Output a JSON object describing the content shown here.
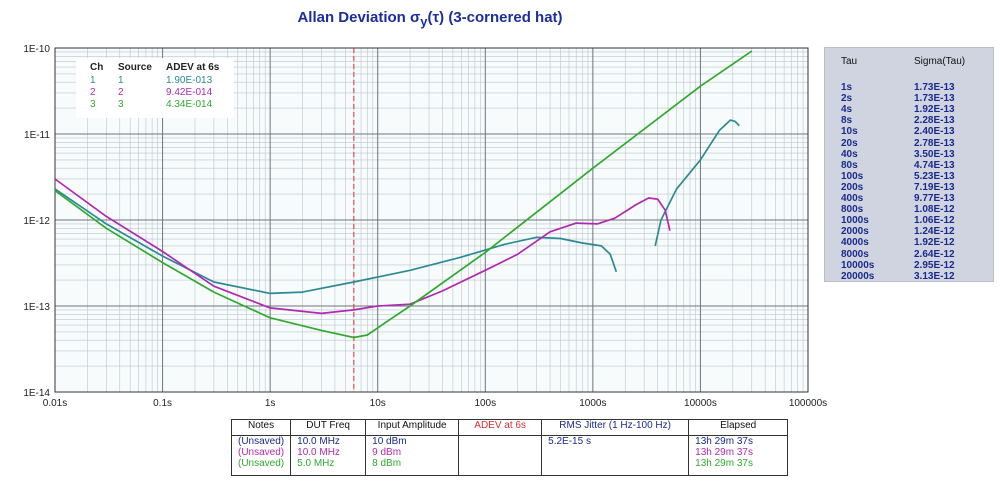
{
  "title": {
    "main": "Allan Deviation σ",
    "sub": "y",
    "rest": "(τ) (3-cornered hat)"
  },
  "chart_data": {
    "type": "line",
    "title": "Allan Deviation σy(τ) (3-cornered hat)",
    "xscale": "log",
    "yscale": "log",
    "xlim": [
      0.01,
      100000
    ],
    "ylim": [
      1e-14,
      1e-10
    ],
    "x_tick_labels": [
      "0.01s",
      "0.1s",
      "1s",
      "10s",
      "100s",
      "1000s",
      "10000s",
      "100000s"
    ],
    "y_tick_labels": [
      "1E-10",
      "1E-11",
      "1E-12",
      "1E-13",
      "1E-14"
    ],
    "grid": true,
    "marker_line": {
      "x": 6,
      "color": "#d63030",
      "style": "dashed"
    },
    "series": [
      {
        "name": "1",
        "color": "#2b8a94",
        "points": [
          [
            0.01,
            2.3e-12
          ],
          [
            0.03,
            9e-13
          ],
          [
            0.1,
            3.8e-13
          ],
          [
            0.3,
            1.9e-13
          ],
          [
            1,
            1.4e-13
          ],
          [
            2,
            1.45e-13
          ],
          [
            6,
            1.9e-13
          ],
          [
            20,
            2.6e-13
          ],
          [
            60,
            3.7e-13
          ],
          [
            150,
            5.2e-13
          ],
          [
            300,
            6.3e-13
          ],
          [
            500,
            6.1e-13
          ],
          [
            800,
            5.4e-13
          ],
          [
            1200,
            5e-13
          ],
          [
            1450,
            4e-13
          ],
          [
            1650,
            2.5e-13
          ]
        ]
      },
      {
        "name": "1",
        "color": "#2b8a94",
        "points": [
          [
            3800,
            5e-13
          ],
          [
            4300,
            1e-12
          ],
          [
            6000,
            2.3e-12
          ],
          [
            10000,
            5e-12
          ],
          [
            15000,
            1.1e-11
          ],
          [
            19000,
            1.45e-11
          ],
          [
            21000,
            1.4e-11
          ],
          [
            23000,
            1.25e-11
          ]
        ]
      },
      {
        "name": "2",
        "color": "#b02ab0",
        "points": [
          [
            0.01,
            3e-12
          ],
          [
            0.03,
            1.1e-12
          ],
          [
            0.1,
            4.3e-13
          ],
          [
            0.3,
            1.7e-13
          ],
          [
            1,
            9.5e-14
          ],
          [
            3,
            8.2e-14
          ],
          [
            6,
            9e-14
          ],
          [
            10,
            1e-13
          ],
          [
            20,
            1.05e-13
          ],
          [
            40,
            1.5e-13
          ],
          [
            100,
            2.6e-13
          ],
          [
            200,
            4e-13
          ],
          [
            400,
            7.3e-13
          ],
          [
            700,
            9.2e-13
          ],
          [
            1100,
            9e-13
          ],
          [
            1600,
            1.05e-12
          ],
          [
            2500,
            1.5e-12
          ],
          [
            3300,
            1.8e-12
          ],
          [
            4000,
            1.75e-12
          ],
          [
            4700,
            1.3e-12
          ],
          [
            5200,
            7.5e-13
          ]
        ]
      },
      {
        "name": "3",
        "color": "#2faa2f",
        "points": [
          [
            0.01,
            2.2e-12
          ],
          [
            0.03,
            8e-13
          ],
          [
            0.1,
            3.2e-13
          ],
          [
            0.3,
            1.45e-13
          ],
          [
            1,
            7.3e-14
          ],
          [
            3,
            5.2e-14
          ],
          [
            6,
            4.3e-14
          ],
          [
            8,
            4.6e-14
          ],
          [
            12,
            6.5e-14
          ],
          [
            20,
            1e-13
          ],
          [
            100,
            4.2e-13
          ],
          [
            1000,
            4e-12
          ],
          [
            10000,
            3.6e-11
          ],
          [
            30000,
            9.2e-11
          ]
        ]
      }
    ]
  },
  "legend": {
    "headers": [
      "Ch",
      "Source",
      "ADEV at 6s"
    ],
    "rows": [
      {
        "ch": "1",
        "source": "1",
        "adev": "1.90E-013",
        "color": "#2b8a94"
      },
      {
        "ch": "2",
        "source": "2",
        "adev": "9.42E-014",
        "color": "#b02ab0"
      },
      {
        "ch": "3",
        "source": "3",
        "adev": "4.34E-014",
        "color": "#2faa2f"
      }
    ]
  },
  "tau_table": {
    "headers": [
      "Tau",
      "Sigma(Tau)"
    ],
    "rows": [
      [
        "1s",
        "1.73E-13"
      ],
      [
        "2s",
        "1.73E-13"
      ],
      [
        "4s",
        "1.92E-13"
      ],
      [
        "8s",
        "2.28E-13"
      ],
      [
        "10s",
        "2.40E-13"
      ],
      [
        "20s",
        "2.78E-13"
      ],
      [
        "40s",
        "3.50E-13"
      ],
      [
        "80s",
        "4.74E-13"
      ],
      [
        "100s",
        "5.23E-13"
      ],
      [
        "200s",
        "7.19E-13"
      ],
      [
        "400s",
        "9.77E-13"
      ],
      [
        "800s",
        "1.08E-12"
      ],
      [
        "1000s",
        "1.06E-12"
      ],
      [
        "2000s",
        "1.24E-12"
      ],
      [
        "4000s",
        "1.92E-12"
      ],
      [
        "8000s",
        "2.64E-12"
      ],
      [
        "10000s",
        "2.95E-12"
      ],
      [
        "20000s",
        "3.13E-12"
      ]
    ]
  },
  "bottom_table": {
    "headers": [
      "Notes",
      "DUT Freq",
      "Input Amplitude",
      "ADEV at 6s",
      "RMS Jitter (1 Hz-100 Hz)",
      "Elapsed"
    ],
    "header_colors": [
      "#111111",
      "#111111",
      "#111111",
      "#d63030",
      "#1a2a8c",
      "#111111"
    ],
    "row_colors": [
      "#1a2a8c",
      "#b02ab0",
      "#2faa2f"
    ],
    "columns": {
      "notes": [
        "(Unsaved)",
        "(Unsaved)",
        "(Unsaved)"
      ],
      "dut_freq": [
        "10.0 MHz",
        "10.0 MHz",
        "5.0 MHz"
      ],
      "input_amplitude": [
        "10 dBm",
        "9 dBm",
        "8 dBm"
      ],
      "adev": [],
      "rms_jitter": [
        "5.2E-15 s"
      ],
      "elapsed": [
        "13h 29m 37s",
        "13h 29m 37s",
        "13h 29m 37s"
      ]
    }
  }
}
